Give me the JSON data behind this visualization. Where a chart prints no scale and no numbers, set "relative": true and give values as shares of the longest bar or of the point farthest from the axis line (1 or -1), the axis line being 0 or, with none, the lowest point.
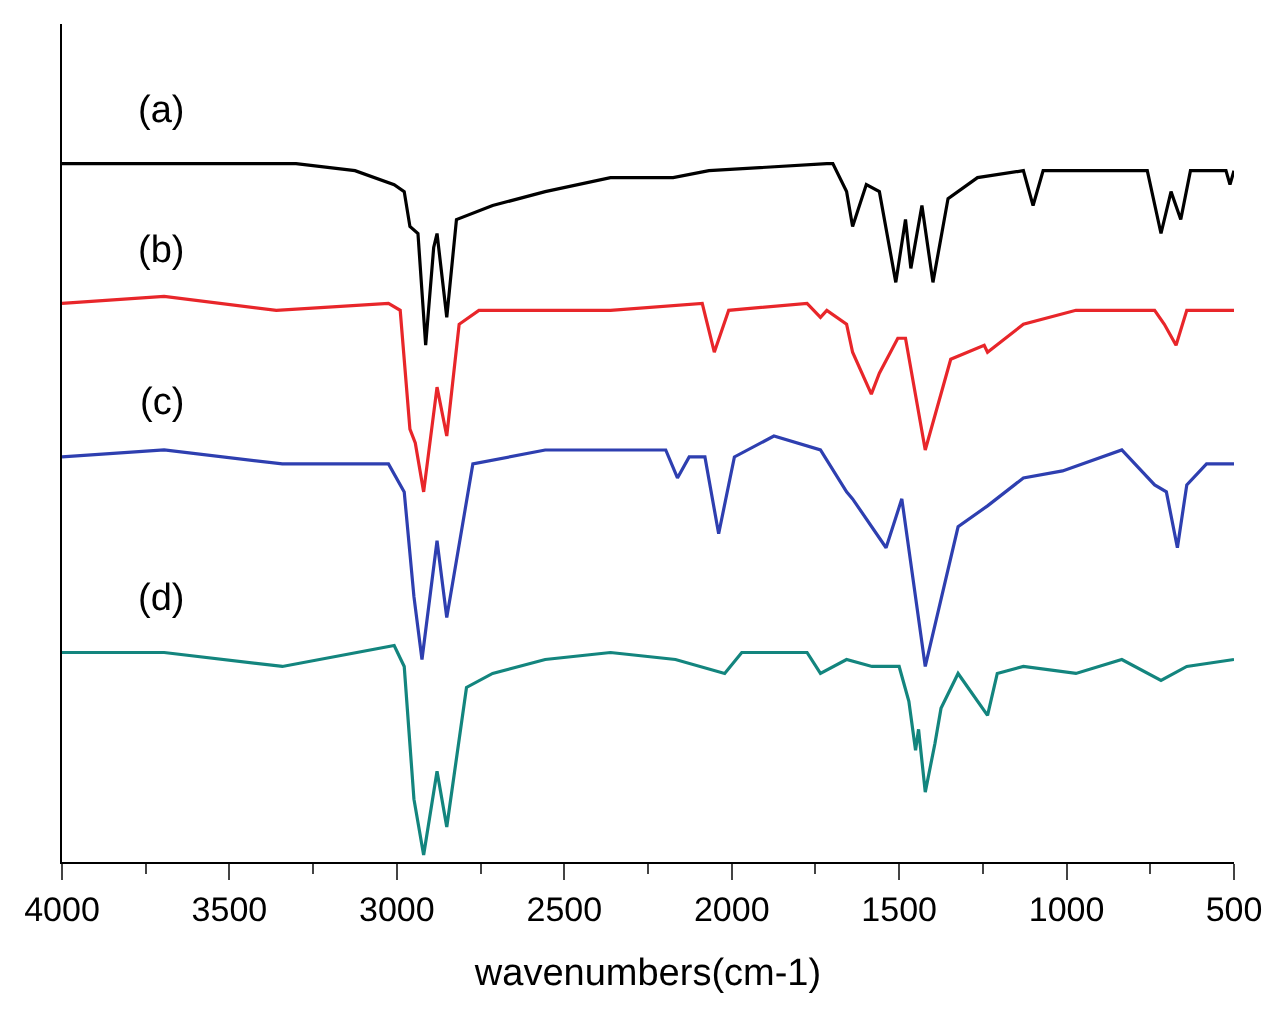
{
  "chart_data": {
    "type": "line",
    "relative": true,
    "xlabel": "wavenumbers(cm-1)",
    "xlim": [
      4000,
      500
    ],
    "xticks": [
      4000,
      {
        "value": 3750,
        "label": null
      },
      3500,
      {
        "value": 3250,
        "label": null
      },
      3000,
      {
        "value": 2750,
        "label": null
      },
      2500,
      {
        "value": 2250,
        "label": null
      },
      2000,
      {
        "value": 1750,
        "label": null
      },
      1500,
      {
        "value": 1250,
        "label": null
      },
      1000,
      {
        "value": 750,
        "label": null
      },
      500
    ],
    "legend": false,
    "marker": "none",
    "line_style": "solid",
    "series": [
      {
        "name": "(a)",
        "color": "#000000",
        "x": [
          4000,
          3595,
          3301,
          3125,
          3008,
          2978,
          2961,
          2937,
          2914,
          2890,
          2880,
          2851,
          2822,
          2714,
          2557,
          2362,
          2205,
          2175,
          2068,
          1716,
          1698,
          1657,
          1639,
          1598,
          1559,
          1510,
          1481,
          1465,
          1432,
          1399,
          1354,
          1266,
          1129,
          1100,
          1070,
          935,
          759,
          718,
          688,
          659,
          630,
          524,
          512,
          500
        ],
        "values": [
          1.0,
          1.0,
          1.0,
          0.99,
          0.97,
          0.96,
          0.91,
          0.9,
          0.74,
          0.88,
          0.9,
          0.78,
          0.92,
          0.94,
          0.96,
          0.98,
          0.98,
          0.98,
          0.99,
          1.0,
          1.0,
          0.96,
          0.91,
          0.97,
          0.96,
          0.83,
          0.92,
          0.85,
          0.94,
          0.83,
          0.95,
          0.98,
          0.99,
          0.94,
          0.99,
          0.99,
          0.99,
          0.9,
          0.96,
          0.92,
          0.99,
          0.99,
          0.97,
          0.99
        ]
      },
      {
        "name": "(b)",
        "color": "#e8262a",
        "x": [
          4000,
          3695,
          3360,
          3025,
          2990,
          2961,
          2945,
          2920,
          2880,
          2851,
          2814,
          2755,
          2557,
          2362,
          2088,
          2052,
          2009,
          1775,
          1735,
          1716,
          1657,
          1639,
          1583,
          1559,
          1504,
          1481,
          1422,
          1346,
          1246,
          1236,
          1129,
          972,
          835,
          737,
          708,
          673,
          641,
          500
        ],
        "values": [
          0.8,
          0.81,
          0.79,
          0.8,
          0.79,
          0.62,
          0.6,
          0.53,
          0.68,
          0.61,
          0.77,
          0.79,
          0.79,
          0.79,
          0.8,
          0.73,
          0.79,
          0.8,
          0.78,
          0.79,
          0.77,
          0.73,
          0.67,
          0.7,
          0.75,
          0.75,
          0.59,
          0.72,
          0.74,
          0.73,
          0.77,
          0.79,
          0.79,
          0.79,
          0.77,
          0.74,
          0.79,
          0.79
        ]
      },
      {
        "name": "(c)",
        "color": "#2e3fb0",
        "x": [
          4000,
          3695,
          3342,
          3025,
          2978,
          2949,
          2925,
          2880,
          2851,
          2773,
          2557,
          2344,
          2197,
          2162,
          2127,
          2080,
          2039,
          1992,
          1874,
          1735,
          1657,
          1639,
          1539,
          1492,
          1422,
          1324,
          1236,
          1129,
          1012,
          835,
          737,
          702,
          669,
          641,
          582,
          500
        ],
        "values": [
          0.58,
          0.59,
          0.57,
          0.57,
          0.53,
          0.38,
          0.29,
          0.46,
          0.35,
          0.57,
          0.59,
          0.59,
          0.59,
          0.55,
          0.58,
          0.58,
          0.47,
          0.58,
          0.61,
          0.59,
          0.53,
          0.52,
          0.45,
          0.52,
          0.28,
          0.48,
          0.51,
          0.55,
          0.56,
          0.59,
          0.54,
          0.53,
          0.45,
          0.54,
          0.57,
          0.57
        ]
      },
      {
        "name": "(d)",
        "color": "#13857e",
        "x": [
          4000,
          3695,
          3342,
          3008,
          2978,
          2949,
          2920,
          2880,
          2851,
          2792,
          2714,
          2557,
          2362,
          2168,
          2021,
          1970,
          1775,
          1735,
          1657,
          1581,
          1500,
          1471,
          1451,
          1442,
          1422,
          1393,
          1375,
          1324,
          1236,
          1207,
          1129,
          972,
          835,
          718,
          641,
          500
        ],
        "values": [
          0.3,
          0.3,
          0.28,
          0.31,
          0.28,
          0.09,
          0.01,
          0.13,
          0.05,
          0.25,
          0.27,
          0.29,
          0.3,
          0.29,
          0.27,
          0.3,
          0.3,
          0.27,
          0.29,
          0.28,
          0.28,
          0.23,
          0.16,
          0.19,
          0.1,
          0.17,
          0.22,
          0.27,
          0.21,
          0.27,
          0.28,
          0.27,
          0.29,
          0.26,
          0.28,
          0.29
        ]
      }
    ]
  }
}
